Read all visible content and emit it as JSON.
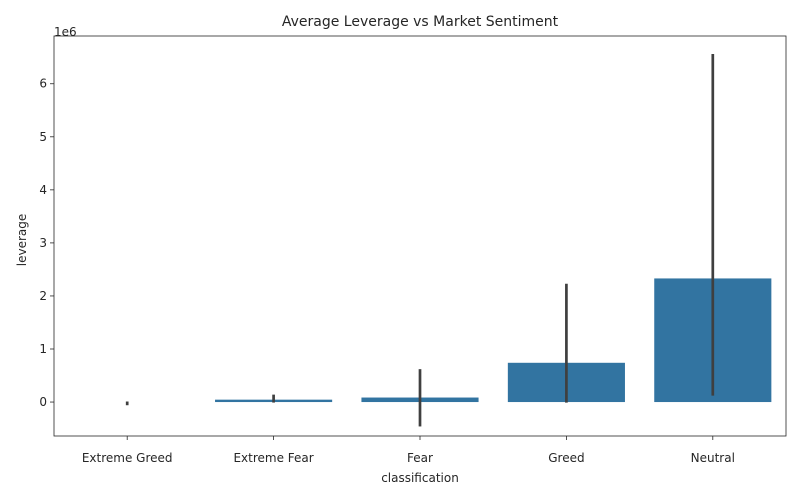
{
  "chart_data": {
    "type": "bar",
    "title": "Average Leverage vs Market Sentiment",
    "xlabel": "classification",
    "ylabel": "leverage",
    "offset_label": "1e6",
    "scale": 1000000,
    "categories": [
      "Extreme Greed",
      "Extreme Fear",
      "Fear",
      "Greed",
      "Neutral"
    ],
    "values": [
      0,
      45000,
      85000,
      740000,
      2330000
    ],
    "error_low": [
      -60000,
      -10000,
      -460000,
      -10000,
      120000
    ],
    "error_high": [
      10000,
      140000,
      620000,
      2230000,
      6560000
    ],
    "ylim": [
      -640000,
      6900000
    ],
    "yticks": [
      0,
      1000000,
      2000000,
      3000000,
      4000000,
      5000000,
      6000000
    ],
    "ytick_labels": [
      "0",
      "1",
      "2",
      "3",
      "4",
      "5",
      "6"
    ],
    "bar_color": "#3274a1",
    "errorbar_color": "#3f3f3f",
    "grid": false
  }
}
